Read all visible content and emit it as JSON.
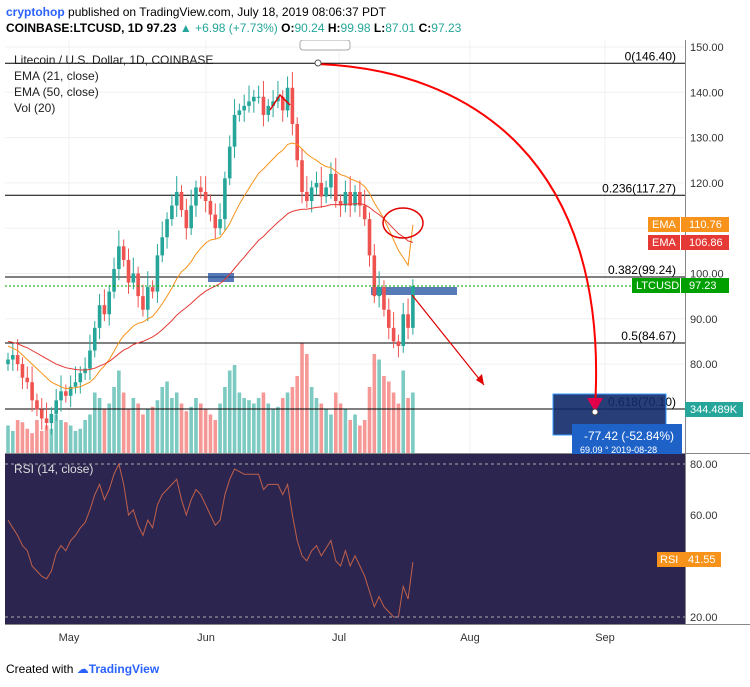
{
  "header": {
    "author": "cryptohop",
    "published": "published on TradingView.com, July 18, 2019 08:06:37 PDT",
    "symbol": "COINBASE:LTCUSD, 1D",
    "price": "97.23",
    "change": "+6.98 (+7.73%)",
    "o_label": "O:",
    "o": "90.24",
    "h_label": "H:",
    "h": "99.98",
    "l_label": "L:",
    "l": "87.01",
    "c_label": "C:",
    "c": "97.23"
  },
  "legend": {
    "title": "Litecoin / U.S. Dollar, 1D, COINBASE",
    "ema21": "EMA (21, close)",
    "ema50": "EMA (50, close)",
    "vol": "Vol (20)",
    "rsi": "RSI (14, close)"
  },
  "fib": [
    {
      "label": "0(146.40)",
      "value": 146.4
    },
    {
      "label": "0.236(117.27)",
      "value": 117.27
    },
    {
      "label": "0.382(99.24)",
      "value": 99.24
    },
    {
      "label": "0.5(84.67)",
      "value": 84.67
    },
    {
      "label": "0.618(70.10)",
      "value": 70.1
    }
  ],
  "badges": {
    "ema21_label": "EMA",
    "ema21_value": "110.76",
    "ema50_label": "EMA",
    "ema50_value": "106.86",
    "ltc_label": "LTCUSD",
    "ltc_value": "97.23",
    "vol_value": "344.489K",
    "rsi_label": "RSI",
    "rsi_value": "41.55"
  },
  "measure": {
    "line1": "-77.42 (-52.84%)",
    "line2": "69.09 ° 2019-08-28"
  },
  "colors": {
    "up": "#26a69a",
    "down": "#ef5350",
    "ema21": "#f7931a",
    "ema50": "#e53935",
    "fib": "#000000",
    "rsi_bg": "#2b2550",
    "arrow": "#ff0000"
  },
  "footer": {
    "created": "Created with",
    "brand": "TradingView"
  },
  "chart_data": {
    "type": "line",
    "title": "Litecoin / U.S. Dollar, 1D, COINBASE",
    "x_ticks": [
      "May",
      "Jun",
      "Jul",
      "Aug",
      "Sep"
    ],
    "price_ticks": [
      150.0,
      140.0,
      130.0,
      120.0,
      110.0,
      100.0,
      90.0,
      80.0
    ],
    "rsi_ticks": [
      80.0,
      60.0,
      20.0
    ],
    "ylim_price": [
      62,
      150
    ],
    "ylim_rsi": [
      15,
      80
    ],
    "close": [
      81,
      82,
      80,
      77,
      76,
      72,
      70,
      68,
      67,
      69,
      72,
      74,
      73,
      75,
      76,
      78,
      79,
      83,
      88,
      93,
      91,
      96,
      101,
      106,
      103,
      98,
      100,
      95,
      92,
      97,
      96,
      104,
      108,
      112,
      115,
      118,
      114,
      110,
      115,
      119,
      118,
      116,
      113,
      110,
      112,
      121,
      128,
      135,
      136,
      137,
      138,
      139,
      139,
      135,
      137,
      138,
      139,
      136,
      141,
      133,
      125,
      118,
      116,
      119,
      120,
      117,
      119,
      122,
      116,
      115,
      118,
      115,
      118,
      115,
      112,
      104,
      95,
      97,
      92,
      88,
      85,
      84,
      91,
      88,
      97.23
    ],
    "ema21": [
      84,
      83.5,
      83,
      82,
      81,
      80,
      79,
      78,
      77,
      76,
      75.5,
      75,
      74.6,
      74.7,
      74.8,
      75,
      75.5,
      76,
      77,
      78.5,
      79.6,
      81,
      82.8,
      84.8,
      86.3,
      87.3,
      88.4,
      89,
      89.3,
      90,
      90.5,
      91.8,
      93.3,
      95,
      96.8,
      98.8,
      100.4,
      101.3,
      102.6,
      104.3,
      105.6,
      106.7,
      107.4,
      107.6,
      108,
      109.4,
      111,
      113.2,
      115.3,
      117.1,
      118.8,
      120.5,
      122.1,
      123.1,
      124.2,
      125.3,
      126.4,
      127.2,
      128.5,
      128.8,
      128.5,
      127.5,
      126.4,
      125.6,
      125,
      124.2,
      123.6,
      123.4,
      122.6,
      121.8,
      121.5,
      120.9,
      120.5,
      120,
      119.2,
      117.7,
      115.6,
      113.9,
      112,
      109.8,
      107.4,
      105.1,
      103.5,
      101.8,
      110.76
    ],
    "ema50": [
      85,
      84.8,
      84.5,
      84,
      83.6,
      83,
      82.4,
      81.8,
      81.2,
      80.6,
      80,
      79.6,
      79.2,
      79,
      78.8,
      78.7,
      78.7,
      78.8,
      79.1,
      79.6,
      80,
      80.6,
      81.4,
      82.3,
      83.1,
      83.6,
      84.3,
      84.7,
      85,
      85.5,
      86,
      86.7,
      87.6,
      88.6,
      89.6,
      90.8,
      91.7,
      92.5,
      93.4,
      94.4,
      95.3,
      96.1,
      96.7,
      97.2,
      97.8,
      98.7,
      99.8,
      101.1,
      102.4,
      103.6,
      104.9,
      106.1,
      107.3,
      108.2,
      109.3,
      110.3,
      111.3,
      112.2,
      113.2,
      113.7,
      114,
      114.2,
      114.2,
      114.4,
      114.6,
      114.7,
      114.9,
      115.2,
      115.2,
      115.2,
      115.3,
      115.3,
      115.4,
      115.4,
      115.2,
      114.6,
      113.7,
      113,
      112.1,
      111,
      109.9,
      108.8,
      108.1,
      107.2,
      106.86
    ],
    "volume_rel": [
      0.25,
      0.2,
      0.3,
      0.28,
      0.22,
      0.18,
      0.3,
      0.2,
      0.25,
      0.22,
      0.35,
      0.3,
      0.28,
      0.25,
      0.2,
      0.22,
      0.3,
      0.35,
      0.55,
      0.5,
      0.4,
      0.45,
      0.6,
      0.75,
      0.55,
      0.4,
      0.5,
      0.45,
      0.35,
      0.4,
      0.42,
      0.48,
      0.6,
      0.65,
      0.5,
      0.55,
      0.45,
      0.38,
      0.42,
      0.5,
      0.45,
      0.4,
      0.35,
      0.3,
      0.45,
      0.6,
      0.75,
      0.8,
      0.55,
      0.5,
      0.48,
      0.45,
      0.5,
      0.55,
      0.45,
      0.4,
      0.42,
      0.5,
      0.55,
      0.6,
      0.7,
      1.0,
      0.9,
      0.6,
      0.5,
      0.45,
      0.4,
      0.35,
      0.55,
      0.45,
      0.4,
      0.3,
      0.35,
      0.25,
      0.3,
      0.6,
      0.9,
      0.85,
      0.7,
      0.65,
      0.55,
      0.45,
      0.75,
      0.5,
      0.55
    ],
    "rsi": [
      58,
      55,
      52,
      48,
      46,
      40,
      38,
      36,
      35,
      38,
      45,
      48,
      46,
      50,
      52,
      55,
      57,
      62,
      68,
      72,
      66,
      70,
      76,
      80,
      72,
      60,
      62,
      56,
      52,
      58,
      55,
      64,
      68,
      70,
      72,
      74,
      66,
      60,
      66,
      70,
      68,
      64,
      60,
      56,
      58,
      68,
      74,
      78,
      77,
      76,
      76,
      76,
      76,
      70,
      72,
      72,
      72,
      68,
      72,
      60,
      50,
      44,
      42,
      46,
      48,
      44,
      47,
      50,
      42,
      40,
      46,
      40,
      44,
      40,
      36,
      30,
      24,
      28,
      24,
      22,
      20,
      20,
      32,
      27,
      41.55
    ]
  }
}
